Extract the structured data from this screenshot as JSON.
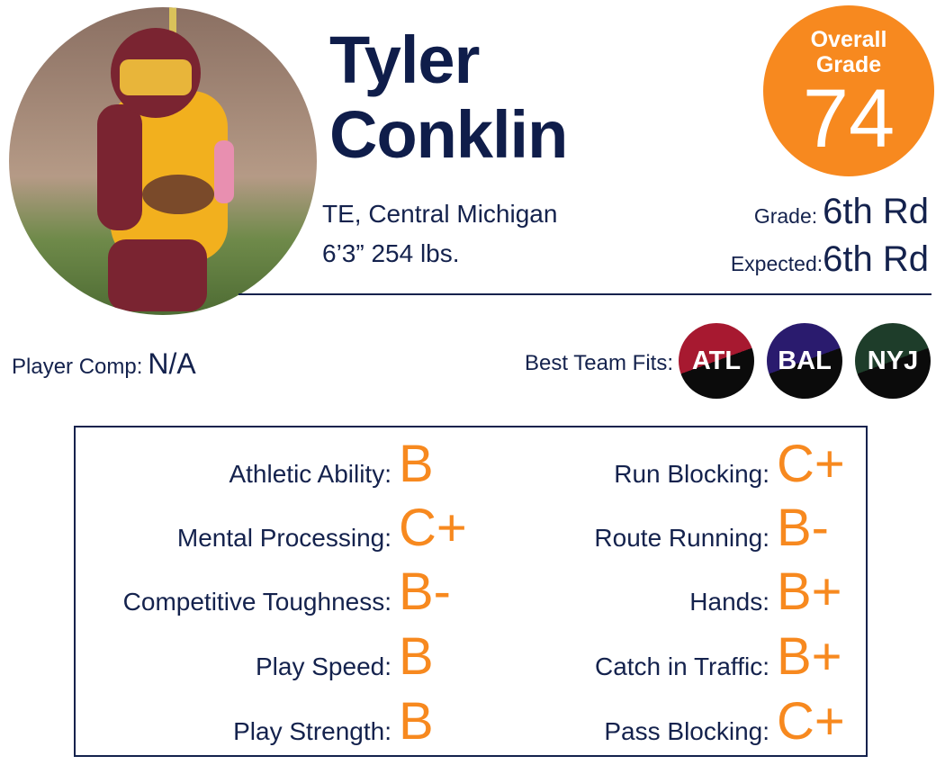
{
  "player": {
    "first_name": "Tyler",
    "last_name": "Conklin",
    "position_school": "TE, Central Michigan",
    "measurements": "6’3” 254 lbs."
  },
  "overall": {
    "label": "Overall Grade",
    "value": 74
  },
  "draft": {
    "grade_label": "Grade:",
    "grade": "6th Rd",
    "expected_label": "Expected:",
    "expected": "6th Rd"
  },
  "player_comp": {
    "label": "Player Comp:",
    "value": "N/A"
  },
  "team_fits": {
    "label": "Best Team Fits:",
    "teams": [
      {
        "abbr": "ATL",
        "color": "#a71930"
      },
      {
        "abbr": "BAL",
        "color": "#2a1b6e"
      },
      {
        "abbr": "NYJ",
        "color": "#1e3d2a"
      }
    ]
  },
  "grades": {
    "left": [
      {
        "label": "Athletic Ability:",
        "grade": "B"
      },
      {
        "label": "Mental Processing:",
        "grade": "C+"
      },
      {
        "label": "Competitive Toughness:",
        "grade": "B-"
      },
      {
        "label": "Play Speed:",
        "grade": "B"
      },
      {
        "label": "Play Strength:",
        "grade": "B"
      }
    ],
    "right": [
      {
        "label": "Run Blocking:",
        "grade": "C+"
      },
      {
        "label": "Route Running:",
        "grade": "B-"
      },
      {
        "label": "Hands:",
        "grade": "B+"
      },
      {
        "label": "Catch in Traffic:",
        "grade": "B+"
      },
      {
        "label": "Pass Blocking:",
        "grade": "C+"
      }
    ]
  }
}
